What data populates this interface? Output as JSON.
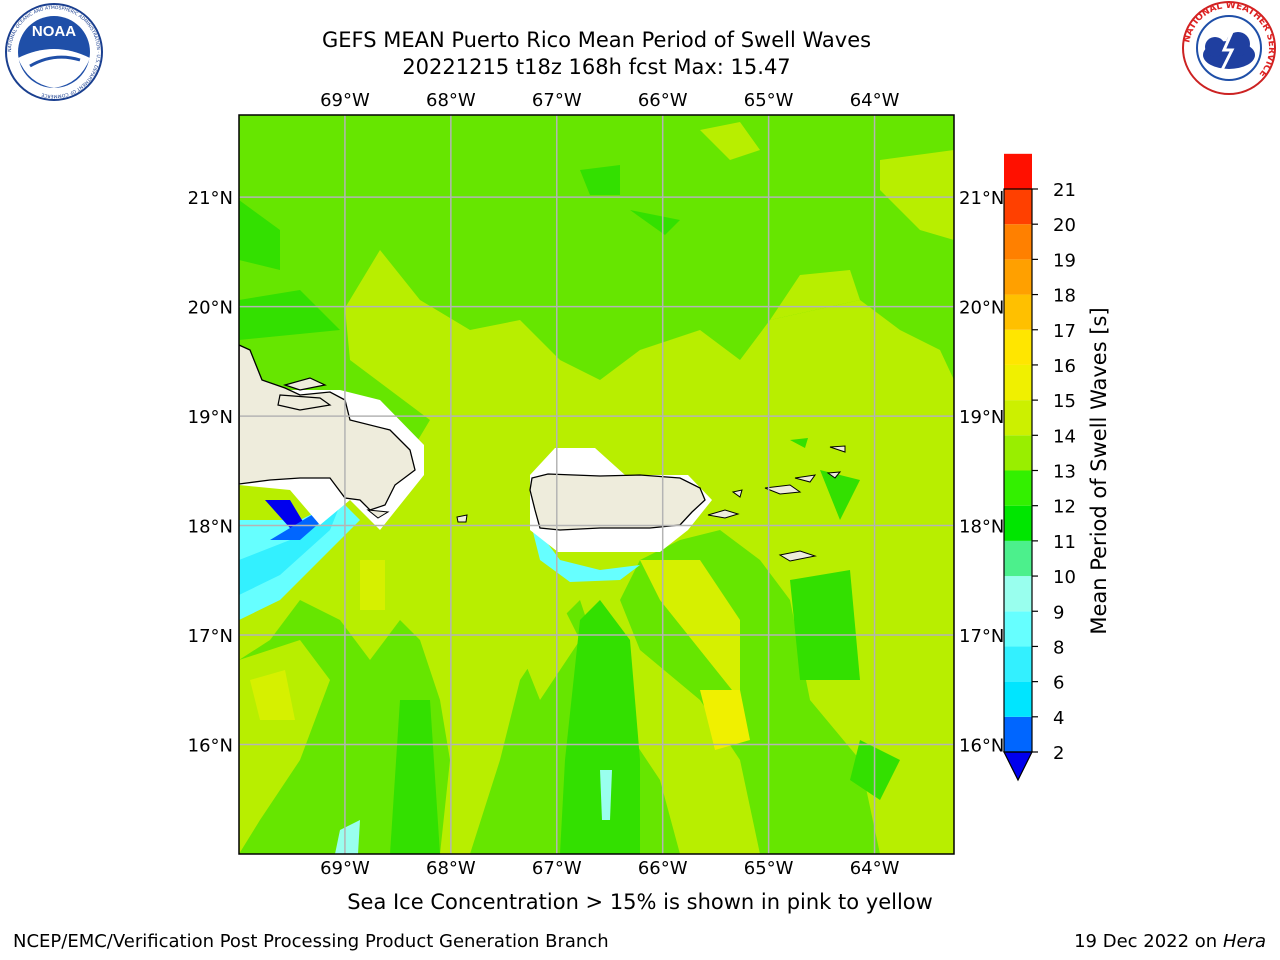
{
  "title_line1": "GEFS MEAN Puerto Rico Mean Period of Swell Waves",
  "title_line2": "20221215 t18z 168h fcst   Max: 15.47",
  "logos": {
    "left": {
      "text": "NOAA",
      "ring": "NATIONAL OCEANIC AND ATMOSPHERIC ADMINISTRATION · U.S. DEPARTMENT OF COMMERCE"
    },
    "right": {
      "ring": "NATIONAL WEATHER SERVICE"
    }
  },
  "map": {
    "lon_labels": [
      "69°W",
      "68°W",
      "67°W",
      "66°W",
      "65°W",
      "64°W"
    ],
    "lat_labels": [
      "21°N",
      "20°N",
      "19°N",
      "18°N",
      "17°N",
      "16°N"
    ],
    "lon_range": [
      -70.0,
      -63.25
    ],
    "lat_range": [
      15.0,
      21.75
    ],
    "land_color": "#eeecdc",
    "masked_color": "#ffffff"
  },
  "colorbar": {
    "label": "Mean Period of Swell Waves [s]",
    "ticks": [
      "2",
      "4",
      "6",
      "8",
      "9",
      "10",
      "11",
      "12",
      "13",
      "14",
      "15",
      "16",
      "17",
      "18",
      "19",
      "20",
      "21"
    ],
    "colors": [
      "#0066ff",
      "#00e5ff",
      "#33f0ff",
      "#66ffff",
      "#99ffee",
      "#4cf08c",
      "#00e600",
      "#33f000",
      "#99ee00",
      "#ccf000",
      "#f0f000",
      "#ffe600",
      "#ffc000",
      "#ffa000",
      "#ff8000",
      "#ff4000",
      "#ff1000"
    ],
    "under_color": "#0000ee"
  },
  "note": "Sea Ice Concentration > 15% is shown in pink to yellow",
  "footer_left": "NCEP/EMC/Verification Post Processing Product Generation Branch",
  "footer_date": "19 Dec 2022 on",
  "footer_machine": "Hera"
}
